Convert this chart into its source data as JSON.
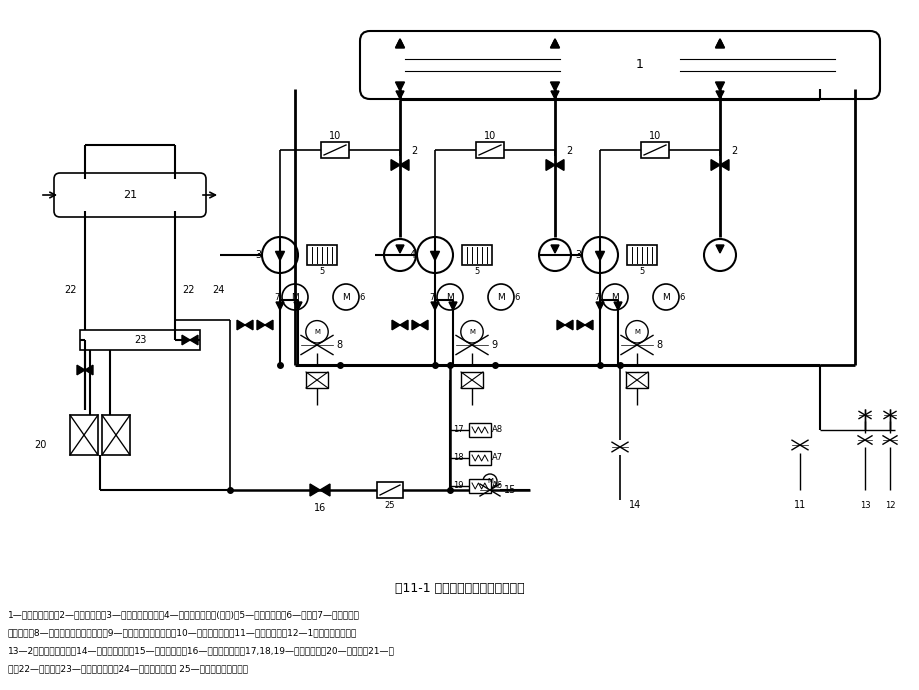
{
  "title": "图11-1 锅炉给水系统工艺流程简图",
  "caption_lines": [
    "1—除氧器给水筱；2—给水前置泵；3—电动调速给水泵；4—电动调速给水泵(备用)；5—液力联轴器；6—电机；7—液力联轴器",
    "调节机构；8—主给水泵再循环调节阀；9—备用泵再循环调节阀；10—流量测量装置；11—高岁减温水；12—1级减温器减温水；",
    "13—2级减温器减温水；14—再热器减温水；15—锅炉启动阀；16—主给水电动阀；17,18,19—高压加热器；20—省煤器；21—汽",
    "包；22—下降管；23—水冷壁下联笱；24—省煤器再循环； 25—总给水流量测量装置"
  ],
  "bg_color": "#ffffff"
}
